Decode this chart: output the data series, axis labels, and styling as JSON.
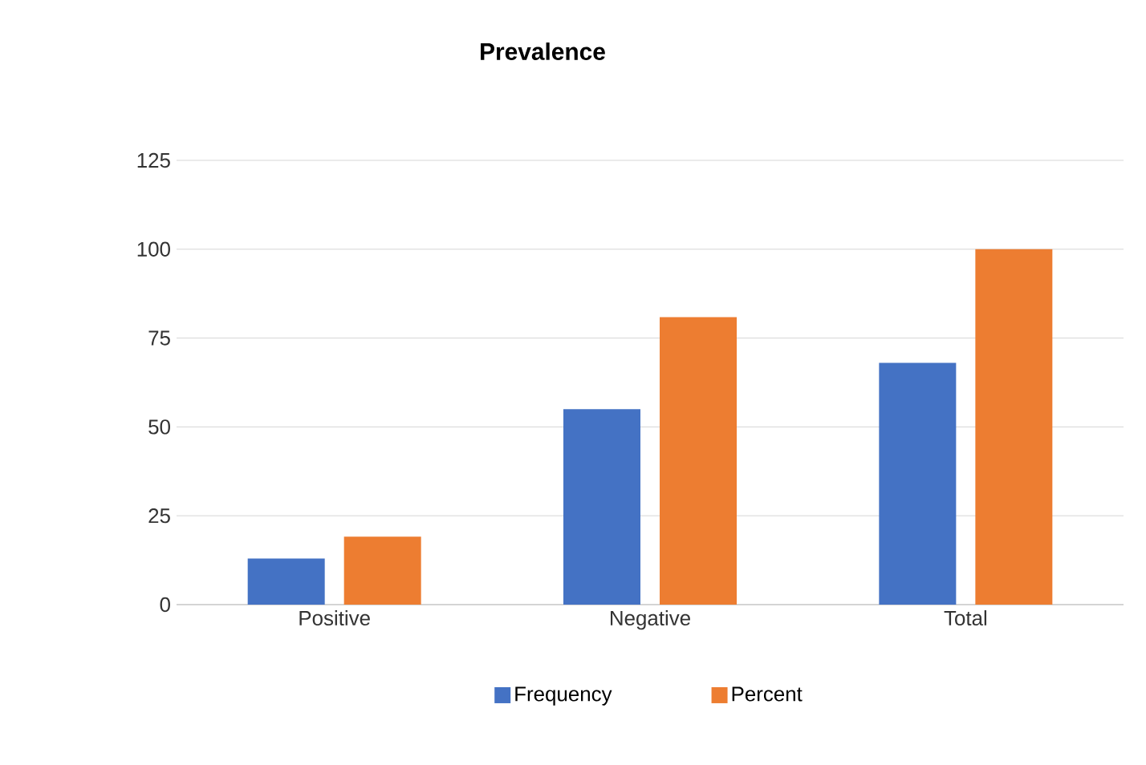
{
  "chart_data": {
    "type": "bar",
    "title": "Prevalence",
    "categories": [
      "Positive",
      "Negative",
      "Total"
    ],
    "series": [
      {
        "name": "Frequency",
        "color": "#4472c4",
        "values": [
          13,
          55,
          68
        ]
      },
      {
        "name": "Percent",
        "color": "#ed7d31",
        "values": [
          19.1,
          80.9,
          100
        ]
      }
    ],
    "ylim": [
      0,
      125
    ],
    "yticks": [
      0,
      25,
      50,
      75,
      100,
      125
    ],
    "grid": "y",
    "legend": "bottom"
  }
}
